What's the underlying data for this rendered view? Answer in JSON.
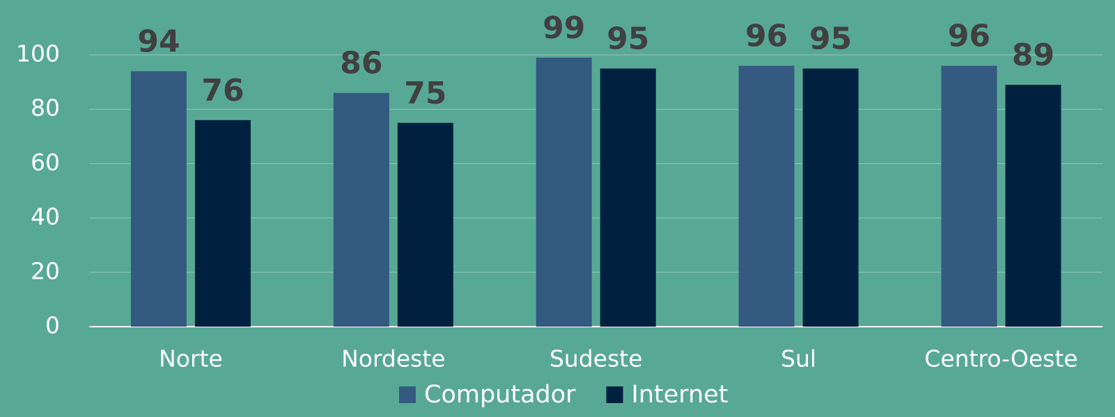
{
  "chart_data": {
    "type": "bar",
    "categories": [
      "Norte",
      "Nordeste",
      "Sudeste",
      "Sul",
      "Centro-Oeste"
    ],
    "series": [
      {
        "name": "Computador",
        "color": "#345a80",
        "values": [
          94,
          86,
          99,
          96,
          96
        ]
      },
      {
        "name": "Internet",
        "color": "#00203f",
        "values": [
          76,
          75,
          95,
          95,
          89
        ]
      }
    ],
    "ylim": [
      0,
      100
    ],
    "yticks": [
      0,
      20,
      40,
      60,
      80,
      100
    ],
    "grid": true,
    "legend": "bottom"
  }
}
